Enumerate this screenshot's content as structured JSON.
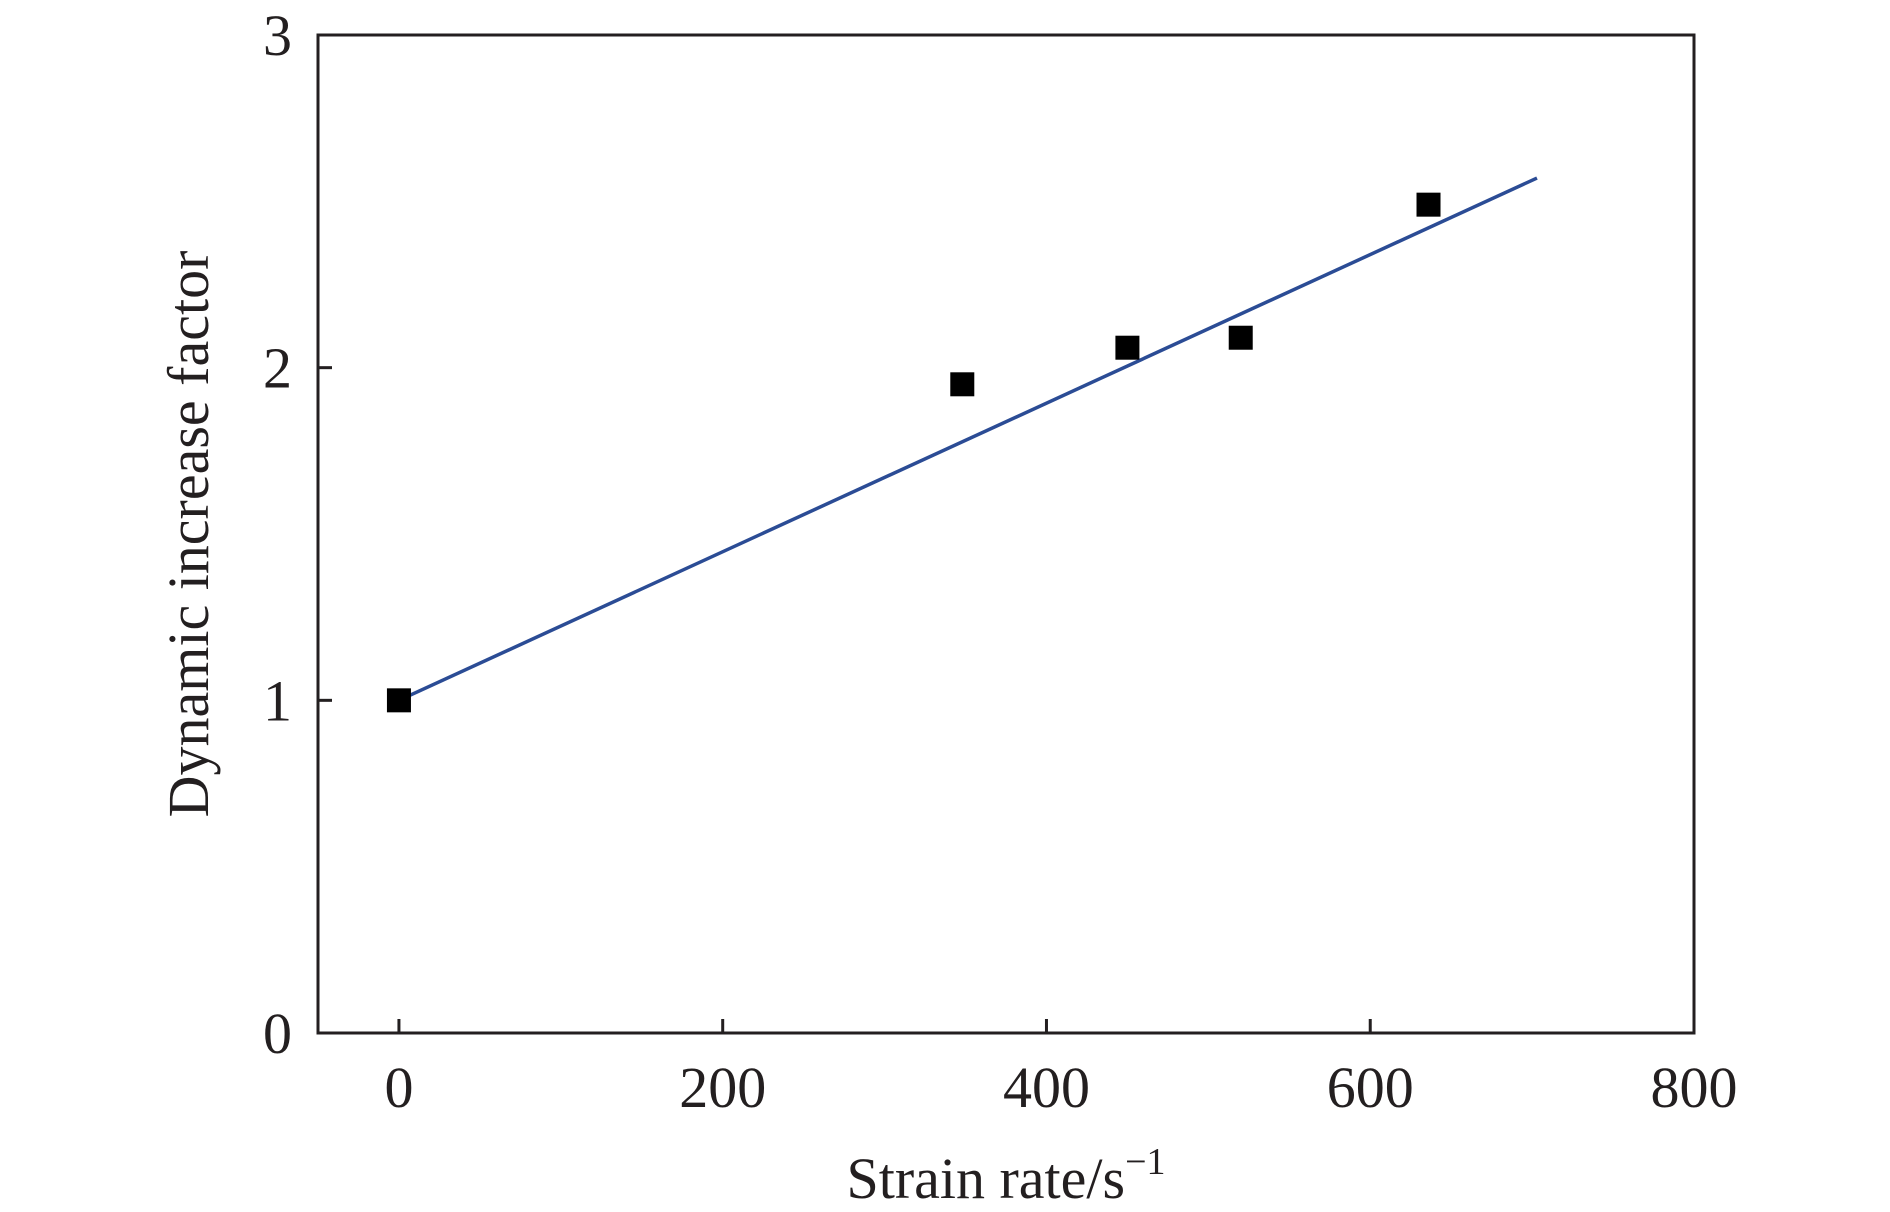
{
  "chart_data": {
    "type": "scatter",
    "title": "",
    "xlabel": "Strain rate/s",
    "xlabel_superscript": "−1",
    "ylabel": "Dynamic increase factor",
    "xlim": [
      -50,
      800
    ],
    "ylim": [
      0,
      3
    ],
    "xticks": [
      "0",
      "200",
      "400",
      "600",
      "800"
    ],
    "yticks": [
      "0",
      "1",
      "2",
      "3"
    ],
    "grid": false,
    "legend": "none",
    "points": [
      {
        "x": 0,
        "y": 1.0
      },
      {
        "x": 348,
        "y": 1.95
      },
      {
        "x": 450,
        "y": 2.06
      },
      {
        "x": 520,
        "y": 2.09
      },
      {
        "x": 636,
        "y": 2.49
      }
    ],
    "fit_line": {
      "x": [
        0,
        703
      ],
      "y": [
        1.0,
        2.57
      ]
    },
    "colors": {
      "points": "#000000",
      "fit_line": "#2b4c95",
      "axes": "#231f20"
    }
  }
}
